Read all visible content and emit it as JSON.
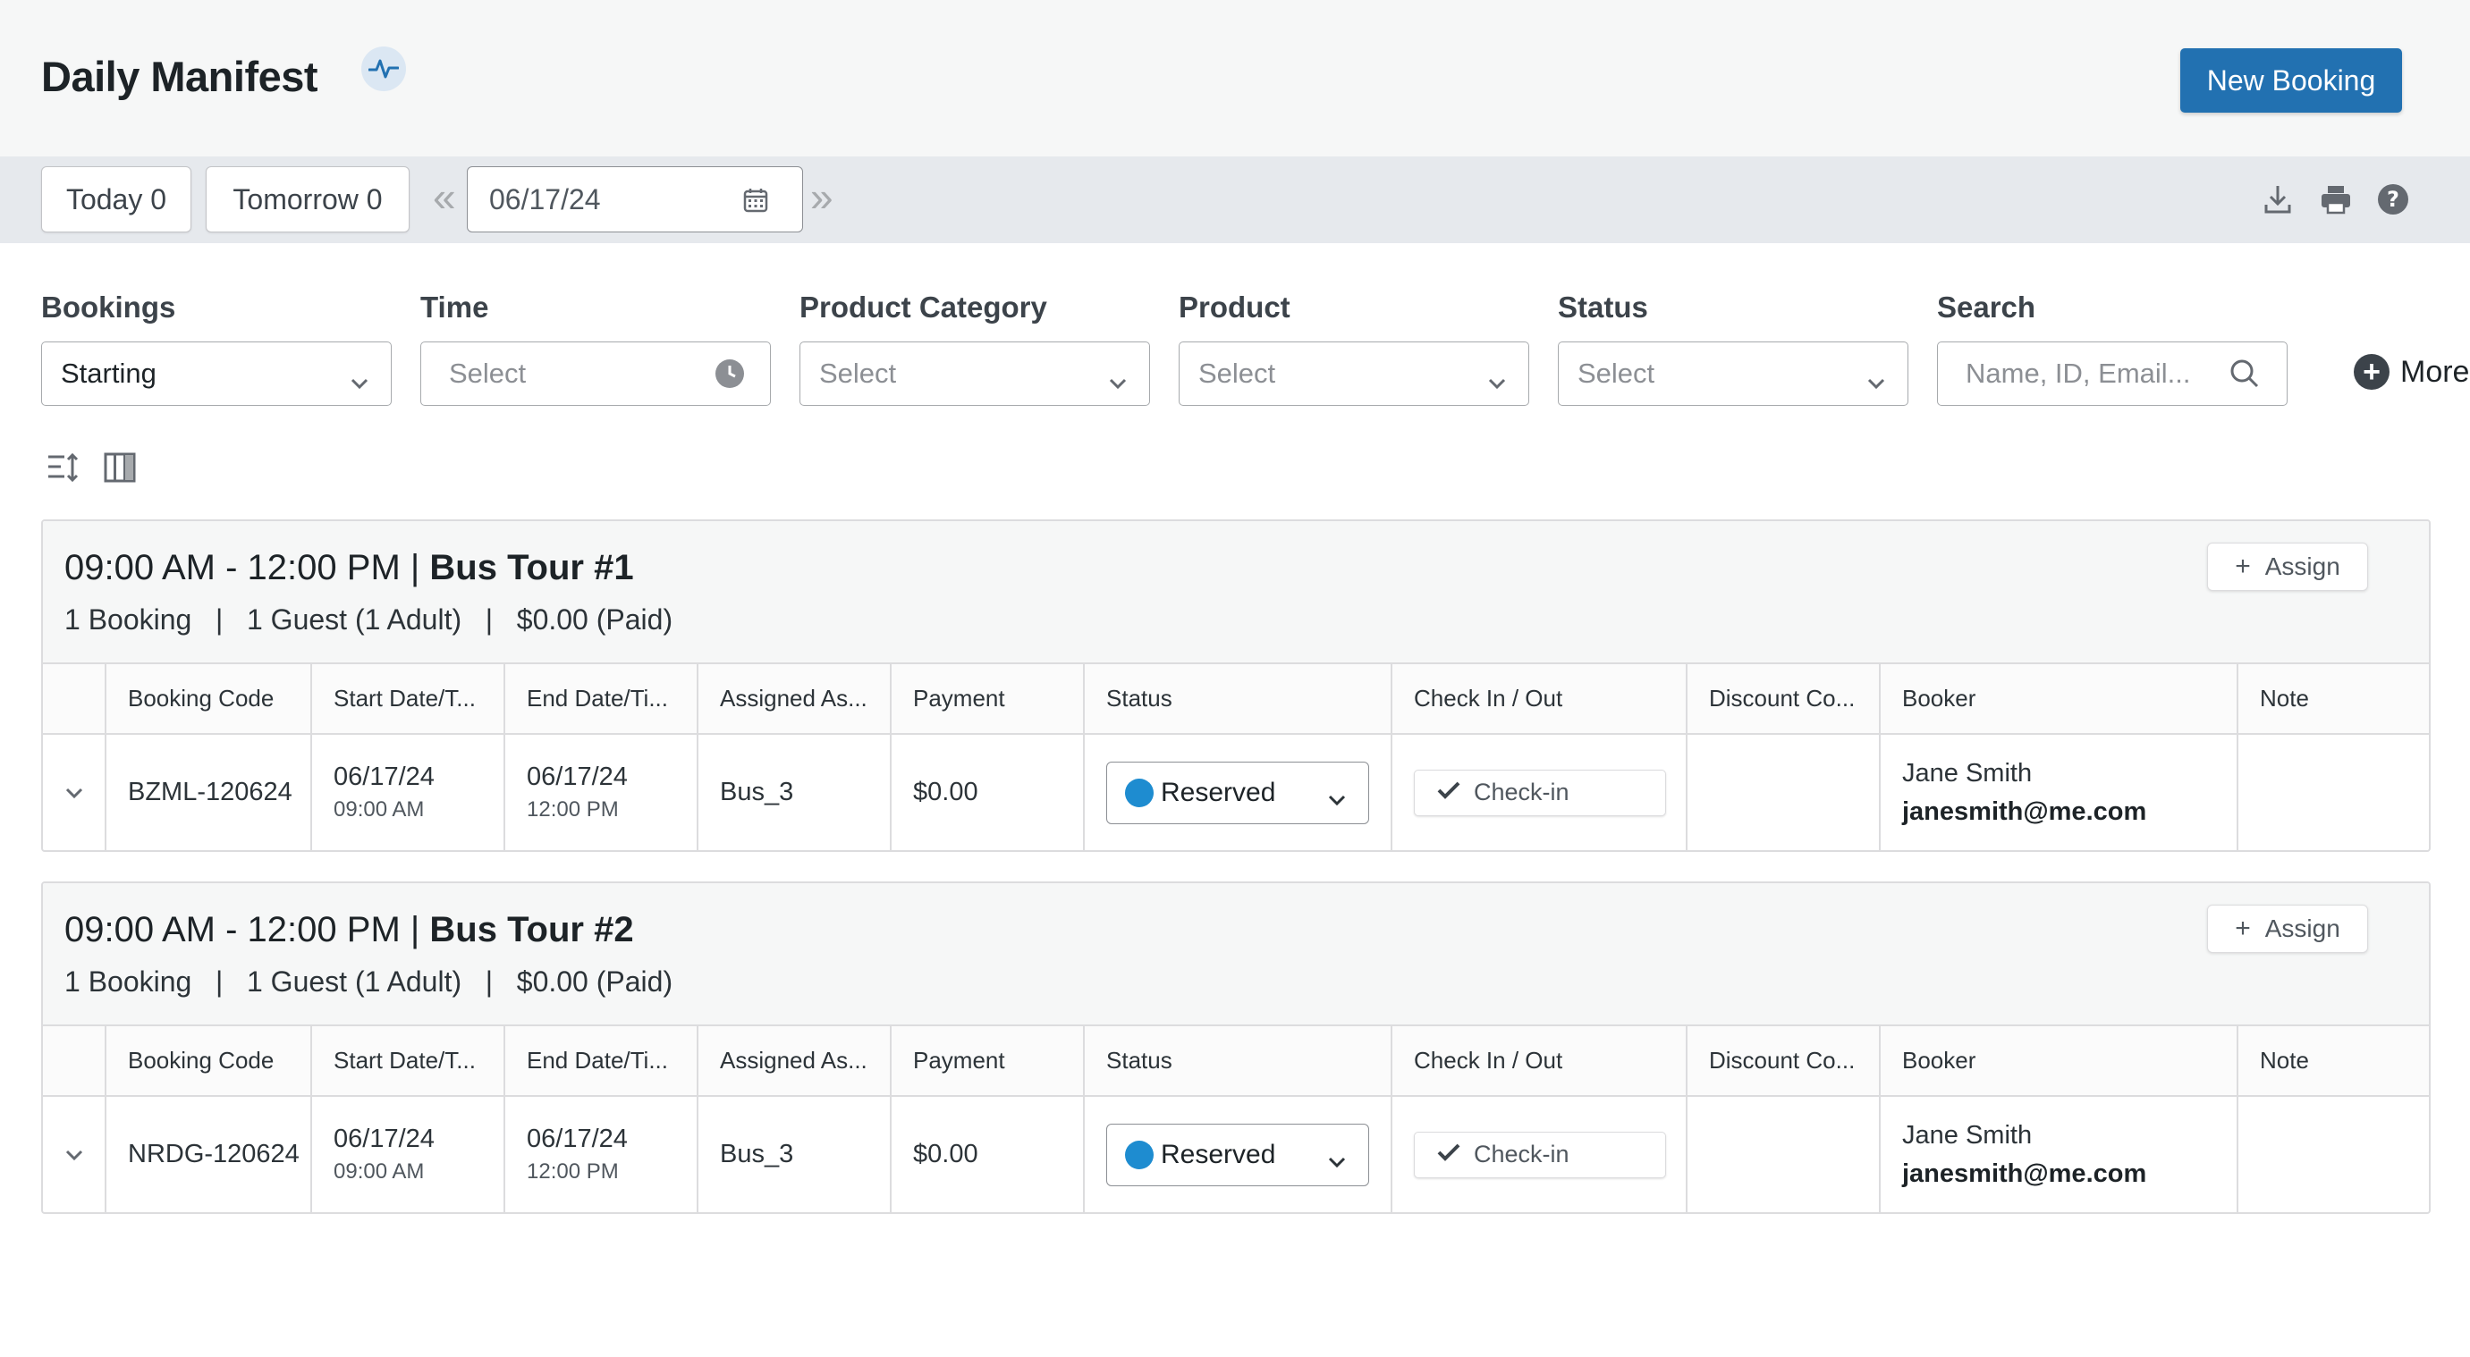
{
  "header": {
    "title": "Daily Manifest",
    "activity_icon": "activity-pulse-icon",
    "new_booking_label": "New Booking"
  },
  "datebar": {
    "today_label": "Today 0",
    "tomorrow_label": "Tomorrow 0",
    "prev_glyph": "«",
    "next_glyph": "»",
    "date_value": "06/17/24",
    "icons": [
      "download-icon",
      "print-icon",
      "help-icon"
    ]
  },
  "filters": {
    "bookings": {
      "label": "Bookings",
      "value": "Starting"
    },
    "time": {
      "label": "Time",
      "placeholder": "Select"
    },
    "product_category": {
      "label": "Product Category",
      "placeholder": "Select"
    },
    "product": {
      "label": "Product",
      "placeholder": "Select"
    },
    "status": {
      "label": "Status",
      "placeholder": "Select"
    },
    "search": {
      "label": "Search",
      "placeholder": "Name, ID, Email..."
    },
    "more_label": "More"
  },
  "columns": [
    "Booking Code",
    "Start Date/T...",
    "End Date/Ti...",
    "Assigned As...",
    "Payment",
    "Status",
    "Check In / Out",
    "Discount Co...",
    "Booker",
    "Note"
  ],
  "groups": [
    {
      "time": "09:00 AM - 12:00 PM | ",
      "tour": "Bus Tour #1",
      "summary": "1 Booking   |   1 Guest (1 Adult)   |   $0.00 (Paid)",
      "assign_label": "Assign",
      "row": {
        "code": "BZML-120624",
        "start_date": "06/17/24",
        "start_time": "09:00 AM",
        "end_date": "06/17/24",
        "end_time": "12:00 PM",
        "assigned": "Bus_3",
        "payment": "$0.00",
        "status": "Reserved",
        "status_color": "#1e8cd0",
        "checkin": "Check-in",
        "discount": "",
        "booker_name": "Jane Smith",
        "booker_email": "janesmith@me.com",
        "note": ""
      }
    },
    {
      "time": "09:00 AM - 12:00 PM | ",
      "tour": "Bus Tour #2",
      "summary": "1 Booking   |   1 Guest (1 Adult)   |   $0.00 (Paid)",
      "assign_label": "Assign",
      "row": {
        "code": "NRDG-120624",
        "start_date": "06/17/24",
        "start_time": "09:00 AM",
        "end_date": "06/17/24",
        "end_time": "12:00 PM",
        "assigned": "Bus_3",
        "payment": "$0.00",
        "status": "Reserved",
        "status_color": "#1e8cd0",
        "checkin": "Check-in",
        "discount": "",
        "booker_name": "Jane Smith",
        "booker_email": "janesmith@me.com",
        "note": ""
      }
    }
  ],
  "colors": {
    "primary": "#2271b1",
    "reserved": "#1e8cd0"
  }
}
